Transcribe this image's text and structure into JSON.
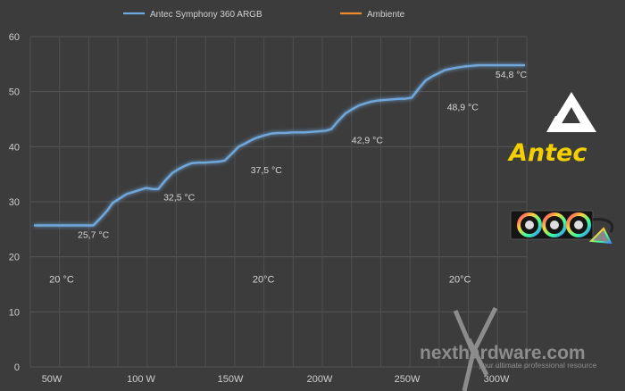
{
  "chart_data": {
    "type": "line",
    "x_categories": [
      "50W",
      "100 W",
      "150W",
      "200W",
      "250W",
      "300W"
    ],
    "ylim": [
      0,
      60
    ],
    "yticks": [
      0,
      10,
      20,
      30,
      40,
      50,
      60
    ],
    "grid": true,
    "legend_position": "top",
    "series": [
      {
        "name": "Antec Symphony 360 ARGB",
        "color": "#6fa8dc",
        "x": [
          0,
          4,
          9,
          14,
          19,
          24,
          28,
          33,
          38,
          43,
          48,
          53,
          57,
          62,
          67,
          71,
          76,
          81,
          86,
          90,
          95,
          100,
          105,
          109,
          114,
          119,
          124,
          129,
          134,
          138,
          143,
          148,
          153,
          158,
          162,
          167,
          172,
          177,
          182,
          187,
          191,
          196,
          201,
          206,
          211,
          215,
          220,
          225,
          230,
          235,
          240,
          244,
          249,
          254,
          259,
          264,
          268,
          273,
          278,
          283,
          288,
          293,
          297,
          302,
          307,
          312,
          317,
          321,
          326,
          331,
          336,
          341,
          346,
          350,
          355
        ],
        "y": [
          25.7,
          25.7,
          25.7,
          25.7,
          25.7,
          25.7,
          25.7,
          25.7,
          25.7,
          25.7,
          27.0,
          28.4,
          29.8,
          30.6,
          31.4,
          31.7,
          32.1,
          32.5,
          32.3,
          32.3,
          33.9,
          35.2,
          36.0,
          36.5,
          37.0,
          37.1,
          37.1,
          37.2,
          37.3,
          37.5,
          38.7,
          40.0,
          40.6,
          41.3,
          41.7,
          42.1,
          42.4,
          42.5,
          42.5,
          42.6,
          42.6,
          42.6,
          42.7,
          42.8,
          42.9,
          43.2,
          44.7,
          46.0,
          46.8,
          47.5,
          47.9,
          48.2,
          48.4,
          48.5,
          48.6,
          48.7,
          48.7,
          48.9,
          50.5,
          52.0,
          52.8,
          53.4,
          53.9,
          54.2,
          54.4,
          54.6,
          54.7,
          54.8,
          54.8,
          54.8,
          54.8,
          54.8,
          54.8,
          54.8,
          54.8
        ]
      },
      {
        "name": "Ambiente",
        "color": "#f08a2a",
        "x": [
          0,
          355
        ],
        "y": [
          20.0,
          20.0
        ]
      }
    ],
    "data_labels": [
      {
        "x": 43,
        "y": 25.7,
        "text": "25,7 °C"
      },
      {
        "x": 105,
        "y": 32.5,
        "text": "32,5 °C"
      },
      {
        "x": 168,
        "y": 37.5,
        "text": "37,5 °C"
      },
      {
        "x": 241,
        "y": 42.9,
        "text": "42,9 °C"
      },
      {
        "x": 310,
        "y": 48.9,
        "text": "48,9 °C"
      },
      {
        "x": 345,
        "y": 54.8,
        "text": "54,8 °C"
      }
    ],
    "ambient_labels": [
      {
        "x": 20,
        "text": "20 °C"
      },
      {
        "x": 166,
        "text": "20°C"
      },
      {
        "x": 308,
        "text": "20°C"
      }
    ]
  },
  "logos": {
    "antec_text": "Antec",
    "watermark_text": "nexthardware.com",
    "watermark_tagline": "your ultimate professional resource"
  }
}
